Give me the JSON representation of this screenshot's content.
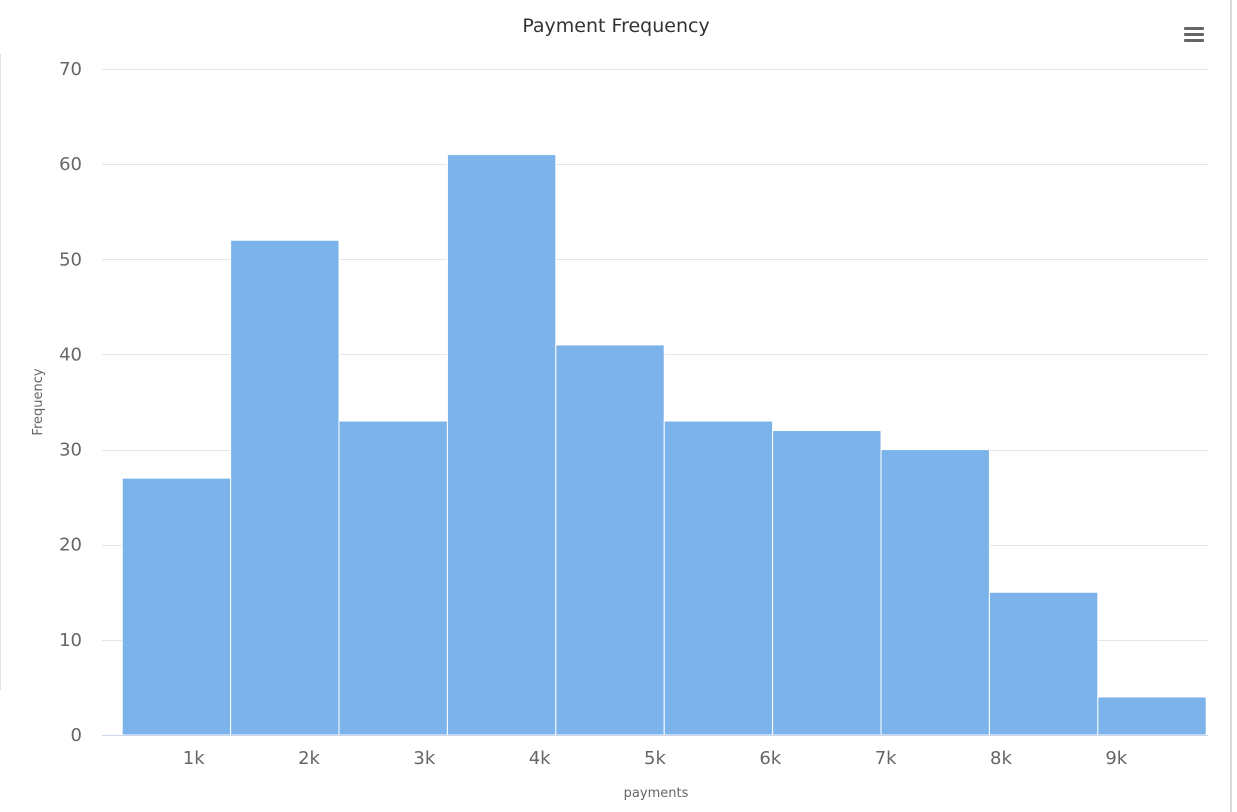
{
  "page": {
    "title": "Payment Frequency",
    "menu_icon": "hamburger-menu-icon"
  },
  "colors": {
    "bar_fill": "#7cb3ea",
    "bar_stroke": "#ffffff",
    "grid": "#e6e6e6",
    "axis_text": "#666666",
    "title_text": "#333333"
  },
  "chart_data": {
    "type": "bar",
    "title": "Payment Frequency",
    "xlabel": "payments",
    "ylabel": "Frequency",
    "ylim": [
      0,
      70
    ],
    "yticks": [
      0,
      10,
      20,
      30,
      40,
      50,
      60,
      70
    ],
    "xlim": [
      300,
      9700
    ],
    "xticks": [
      {
        "value": 1000,
        "label": "1k"
      },
      {
        "value": 2000,
        "label": "2k"
      },
      {
        "value": 3000,
        "label": "3k"
      },
      {
        "value": 4000,
        "label": "4k"
      },
      {
        "value": 5000,
        "label": "5k"
      },
      {
        "value": 6000,
        "label": "6k"
      },
      {
        "value": 7000,
        "label": "7k"
      },
      {
        "value": 8000,
        "label": "8k"
      },
      {
        "value": 9000,
        "label": "9k"
      }
    ],
    "bins": [
      {
        "from": 380,
        "to": 1320,
        "value": 27
      },
      {
        "from": 1320,
        "to": 2260,
        "value": 52
      },
      {
        "from": 2260,
        "to": 3200,
        "value": 33
      },
      {
        "from": 3200,
        "to": 4140,
        "value": 61
      },
      {
        "from": 4140,
        "to": 5080,
        "value": 41
      },
      {
        "from": 5080,
        "to": 6020,
        "value": 33
      },
      {
        "from": 6020,
        "to": 6960,
        "value": 32
      },
      {
        "from": 6960,
        "to": 7900,
        "value": 30
      },
      {
        "from": 7900,
        "to": 8840,
        "value": 15
      },
      {
        "from": 8840,
        "to": 9780,
        "value": 4
      }
    ],
    "grid": true,
    "legend": "none"
  }
}
